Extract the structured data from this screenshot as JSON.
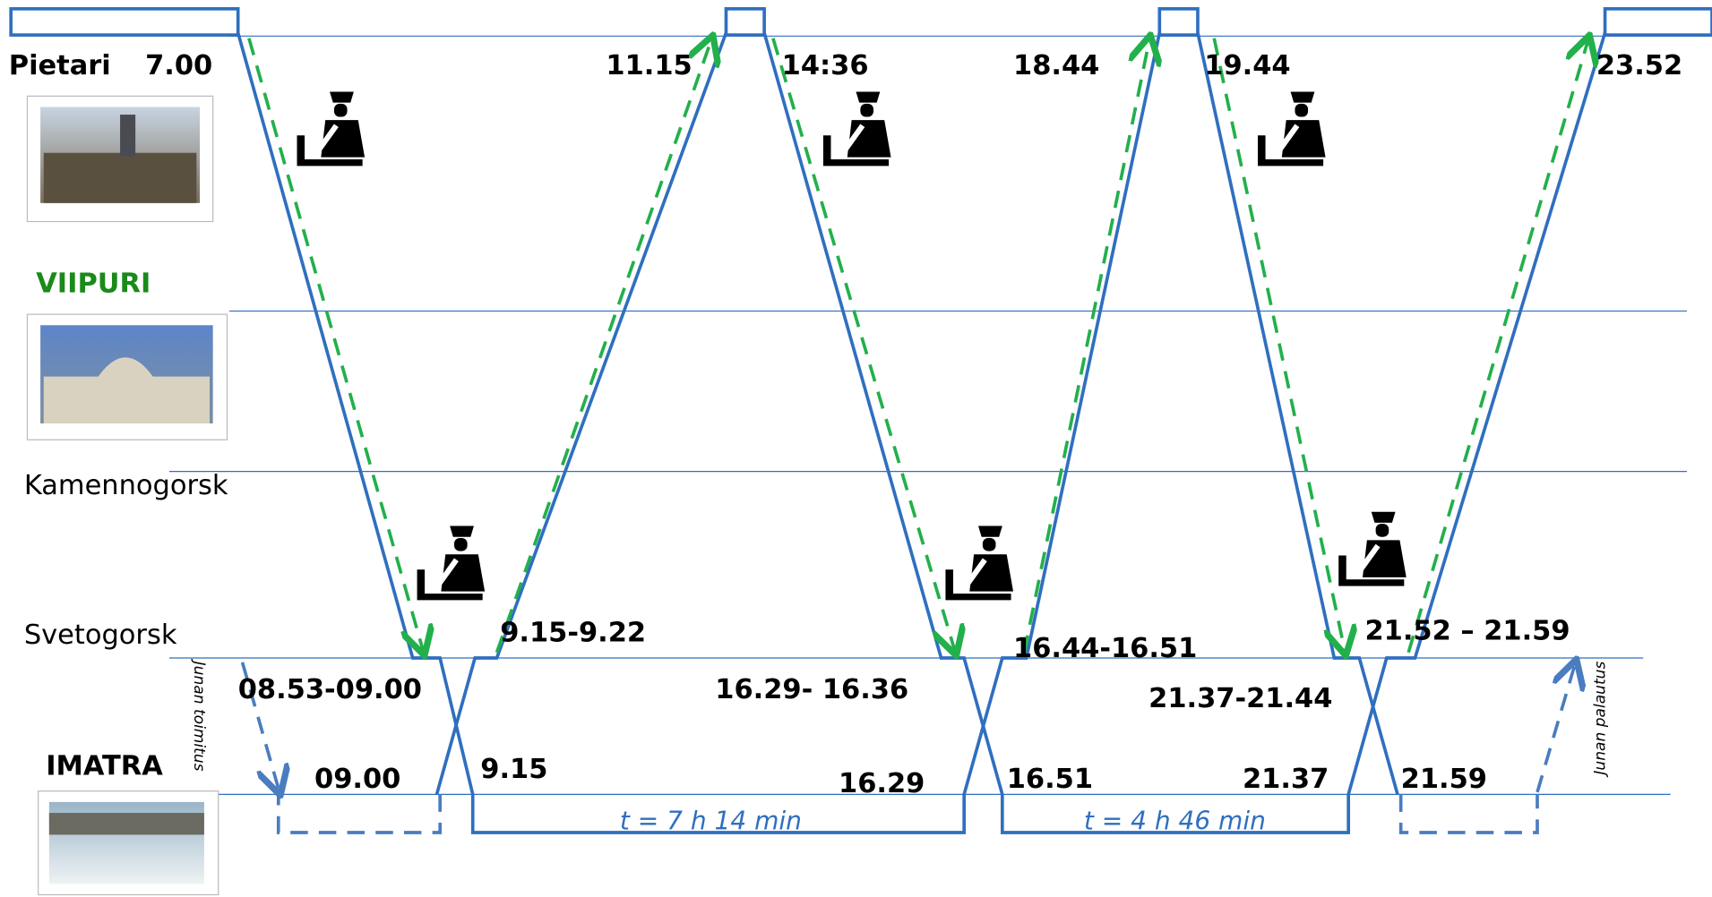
{
  "stations": [
    "Pietari",
    "VIIPURI",
    "Kamennogorsk",
    "Svetogorsk",
    "IMATRA"
  ],
  "times": [
    "7.00",
    "11.15",
    "14:36",
    "18.44",
    "19.44",
    "23.52",
    "9.15-9.22",
    "08.53-09.00",
    "16.29- 16.36",
    "16.44-16.51",
    "21.37-21.44",
    "21.52 – 21.59",
    "09.00",
    "9.15",
    "16.29",
    "16.51",
    "21.37",
    "21.59"
  ],
  "durations": [
    "t = 7 h 14 min",
    "t = 4 h 46 min"
  ],
  "notes": [
    "Junan toimitus",
    "Junan palautus"
  ]
}
